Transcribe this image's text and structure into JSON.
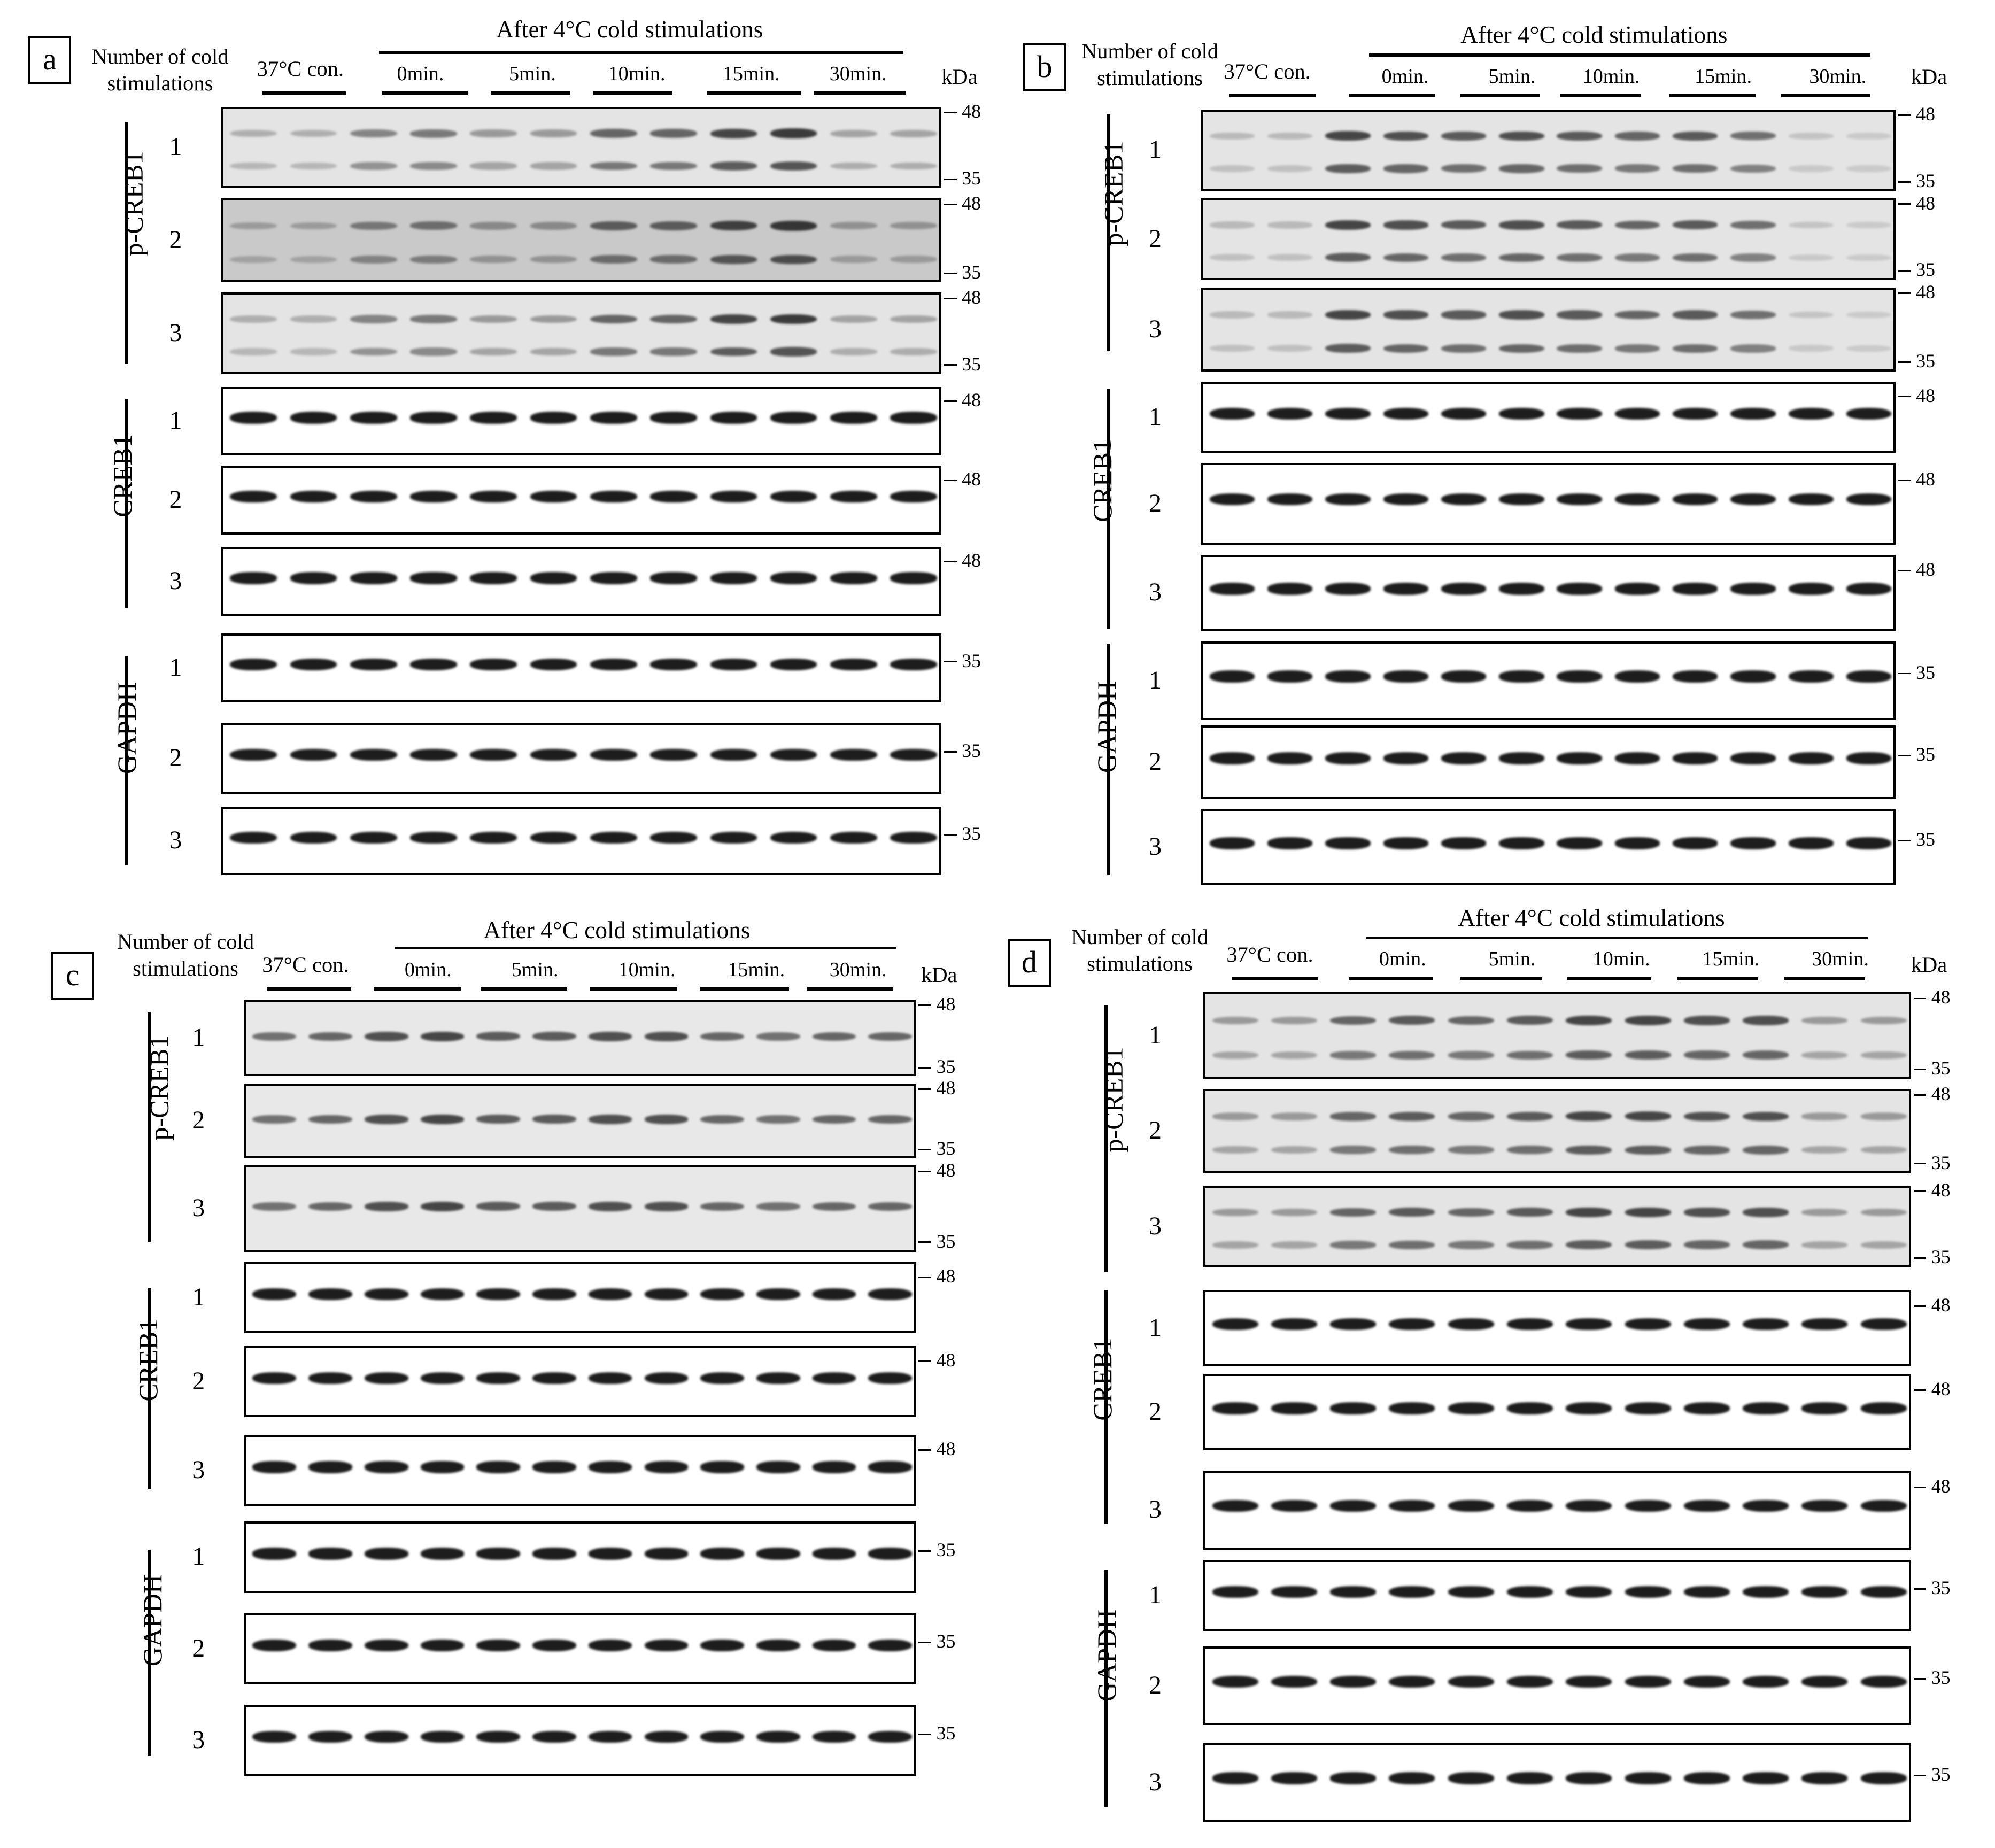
{
  "header": {
    "cold_label_line1": "Number of cold",
    "cold_label_line2": "stimulations",
    "control_label": "37°C con.",
    "treatment_title": "After 4°C cold stimulations",
    "timepoints": [
      "0min.",
      "5min.",
      "10min.",
      "15min.",
      "30min."
    ],
    "unit_label": "kDa"
  },
  "blot_groups": [
    {
      "name": "p-CREB1",
      "replicates": [
        "1",
        "2",
        "3"
      ]
    },
    {
      "name": "CREB1",
      "replicates": [
        "1",
        "2",
        "3"
      ]
    },
    {
      "name": "GAPDH",
      "replicates": [
        "1",
        "2",
        "3"
      ]
    }
  ],
  "markers": {
    "high": "48",
    "low": "35"
  },
  "lanes_per_blot": 12,
  "panels": [
    {
      "letter": "a",
      "pcreb_bands": "two",
      "pcreb_intensity": [
        0.25,
        0.25,
        0.45,
        0.5,
        0.35,
        0.35,
        0.6,
        0.6,
        0.75,
        0.8,
        0.3,
        0.3
      ]
    },
    {
      "letter": "b",
      "pcreb_bands": "two",
      "pcreb_intensity": [
        0.2,
        0.2,
        0.75,
        0.7,
        0.65,
        0.7,
        0.65,
        0.6,
        0.65,
        0.55,
        0.15,
        0.12
      ]
    },
    {
      "letter": "c",
      "pcreb_bands": "one",
      "pcreb_intensity": [
        0.55,
        0.6,
        0.7,
        0.75,
        0.65,
        0.65,
        0.7,
        0.7,
        0.6,
        0.55,
        0.6,
        0.6
      ]
    },
    {
      "letter": "d",
      "pcreb_bands": "two",
      "pcreb_intensity": [
        0.35,
        0.35,
        0.6,
        0.65,
        0.6,
        0.65,
        0.75,
        0.75,
        0.7,
        0.7,
        0.35,
        0.35
      ]
    }
  ],
  "colors": {
    "band": "#111111",
    "membrane_light": "#f2f2f2",
    "membrane_dark": "#c9c9c9"
  }
}
